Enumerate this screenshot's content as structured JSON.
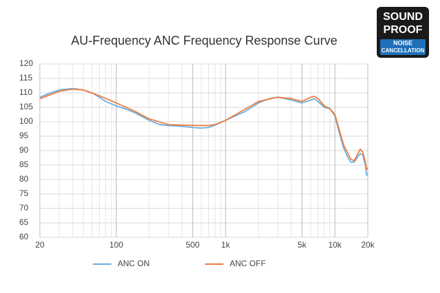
{
  "chart_data": {
    "type": "line",
    "title": "AU-Frequency ANC Frequency Response Curve",
    "xscale": "log",
    "grid": true,
    "xlim": [
      20,
      20000
    ],
    "xticks": [
      20,
      100,
      500,
      {
        "value": 1000,
        "label": "1k"
      },
      {
        "value": 5000,
        "label": "5k"
      },
      {
        "value": 10000,
        "label": "10k"
      },
      {
        "value": 20000,
        "label": "20k"
      }
    ],
    "ylim": [
      60,
      120
    ],
    "yticks": [
      60,
      65,
      70,
      75,
      80,
      85,
      90,
      95,
      100,
      105,
      110,
      115,
      120
    ],
    "series": [
      {
        "name": "ANC ON",
        "color": "#6aaee0",
        "x": [
          20,
          25,
          30,
          40,
          50,
          60,
          70,
          80,
          100,
          120,
          150,
          200,
          250,
          300,
          400,
          500,
          600,
          700,
          800,
          1000,
          1500,
          2000,
          2500,
          3000,
          3500,
          4000,
          5000,
          6000,
          6500,
          7000,
          8000,
          9000,
          10000,
          11000,
          12000,
          13000,
          14000,
          15000,
          16000,
          17000,
          18000,
          19000,
          19500,
          20000
        ],
        "values": [
          108.5,
          110,
          111,
          111.5,
          111,
          110,
          108.5,
          107,
          105.5,
          104.5,
          103,
          100.5,
          99,
          98.7,
          98.4,
          98,
          97.8,
          98,
          98.8,
          100.5,
          103.5,
          106.5,
          108,
          108.5,
          108,
          107.5,
          106.5,
          107.5,
          108,
          107,
          105,
          104.5,
          102,
          96,
          91,
          88,
          86,
          86,
          87.5,
          89,
          88.5,
          85,
          81.5,
          82
        ]
      },
      {
        "name": "ANC OFF",
        "color": "#f07b3c",
        "x": [
          20,
          30,
          40,
          50,
          70,
          100,
          150,
          200,
          300,
          500,
          700,
          800,
          1000,
          2000,
          3000,
          4000,
          5000,
          6000,
          6500,
          7000,
          8000,
          9000,
          10000,
          11000,
          12000,
          14000,
          15000,
          16000,
          17000,
          18000,
          19000,
          19500,
          20000
        ],
        "values": [
          108,
          110.5,
          111.3,
          111,
          109,
          106.5,
          103.5,
          101,
          99,
          98.7,
          98.7,
          99,
          100.5,
          107,
          108.5,
          108,
          107,
          108.5,
          108.8,
          108,
          105.5,
          104.5,
          102.5,
          97,
          92,
          87,
          86.5,
          88.5,
          90.5,
          89.5,
          86,
          83.5,
          84
        ]
      }
    ]
  },
  "badge": {
    "lines": [
      "SOUND",
      "PROOF",
      "NOISE",
      "CANCELLATION"
    ]
  }
}
